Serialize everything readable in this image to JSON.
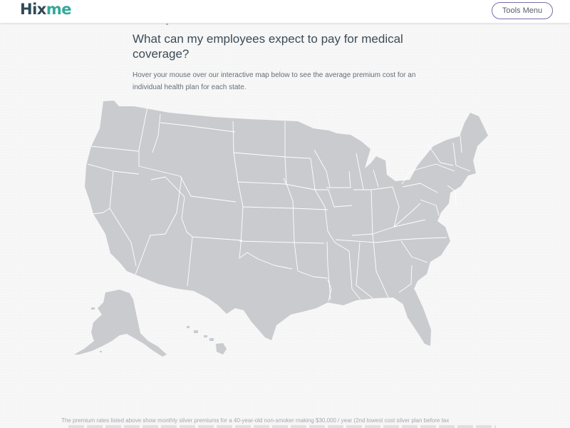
{
  "header": {
    "logo": {
      "part1": "Hix",
      "part2": "me"
    },
    "tools_menu_label": "Tools Menu"
  },
  "main": {
    "heading": "What can my employees expect to pay for medical coverage?",
    "intro": "Hover your mouse over our interactive map below to see the average premium cost for an individual health plan for each state.",
    "footnote": "The premium rates listed above show monthly silver premiums for a 40-year-old non-smoker making $30,000 / year (2nd lowest cost silver plan before tax"
  },
  "colors": {
    "state_fill": "#c9cbce",
    "state_border": "#ffffff",
    "logo_dark": "#2e4959",
    "logo_teal": "#33a89a",
    "button_border": "#7a6ea6"
  }
}
